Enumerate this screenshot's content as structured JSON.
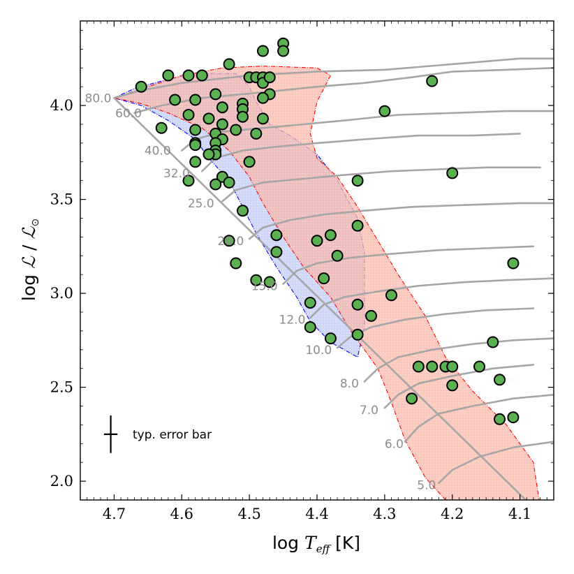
{
  "chart_data": {
    "type": "scatter",
    "title": "",
    "xlabel": "log T_eff [K]",
    "ylabel": "log ℒ / ℒ⊙",
    "xlim": [
      4.75,
      4.05
    ],
    "ylim": [
      1.9,
      4.45
    ],
    "x_ticks": [
      4.7,
      4.6,
      4.5,
      4.4,
      4.3,
      4.2,
      4.1
    ],
    "x_tick_labels": [
      "4.7",
      "4.6",
      "4.5",
      "4.4",
      "4.3",
      "4.2",
      "4.1"
    ],
    "y_ticks": [
      2.0,
      2.5,
      3.0,
      3.5,
      4.0
    ],
    "y_tick_labels": [
      "2.0",
      "2.5",
      "3.0",
      "3.5",
      "4.0"
    ],
    "zams": [
      [
        4.7,
        4.04
      ],
      [
        4.08,
        1.86
      ]
    ],
    "colors": {
      "star_fill": "#5bb151",
      "track": "#a6a6a6",
      "blue_region": "#b9c6f5",
      "blue_edge": "#0000ff",
      "red_region": "#f9b4a6",
      "red_edge": "#ff0000"
    },
    "mass_labels": [
      {
        "mass": "80.0",
        "x": 4.7,
        "y": 4.04
      },
      {
        "mass": "60.0",
        "x": 4.655,
        "y": 3.96
      },
      {
        "mass": "40.0",
        "x": 4.612,
        "y": 3.76
      },
      {
        "mass": "32.0",
        "x": 4.584,
        "y": 3.64
      },
      {
        "mass": "25.0",
        "x": 4.548,
        "y": 3.48
      },
      {
        "mass": "20.0",
        "x": 4.504,
        "y": 3.28
      },
      {
        "mass": "15.0",
        "x": 4.454,
        "y": 3.04
      },
      {
        "mass": "12.0",
        "x": 4.413,
        "y": 2.86
      },
      {
        "mass": "10.0",
        "x": 4.374,
        "y": 2.7
      },
      {
        "mass": "8.0",
        "x": 4.334,
        "y": 2.52
      },
      {
        "mass": "7.0",
        "x": 4.305,
        "y": 2.38
      },
      {
        "mass": "6.0",
        "x": 4.268,
        "y": 2.2
      },
      {
        "mass": "5.0",
        "x": 4.22,
        "y": 1.98
      }
    ],
    "tracks": [
      {
        "mass": "80.0",
        "points": [
          [
            4.7,
            4.04
          ],
          [
            4.66,
            4.08
          ],
          [
            4.6,
            4.12
          ],
          [
            4.5,
            4.16
          ],
          [
            4.4,
            4.18
          ],
          [
            4.3,
            4.19
          ],
          [
            4.2,
            4.22
          ],
          [
            4.1,
            4.25
          ],
          [
            4.05,
            4.25
          ]
        ]
      },
      {
        "mass": "60.0",
        "points": [
          [
            4.67,
            3.96
          ],
          [
            4.63,
            4.0
          ],
          [
            4.57,
            4.04
          ],
          [
            4.48,
            4.07
          ],
          [
            4.4,
            4.1
          ],
          [
            4.33,
            4.12
          ],
          [
            4.26,
            4.15
          ],
          [
            4.2,
            4.18
          ],
          [
            4.12,
            4.19
          ],
          [
            4.05,
            4.2
          ]
        ]
      },
      {
        "mass": "40.0",
        "points": [
          [
            4.6,
            3.76
          ],
          [
            4.58,
            3.82
          ],
          [
            4.54,
            3.86
          ],
          [
            4.48,
            3.88
          ],
          [
            4.42,
            3.9
          ],
          [
            4.36,
            3.92
          ],
          [
            4.28,
            3.95
          ],
          [
            4.2,
            3.96
          ],
          [
            4.12,
            3.97
          ],
          [
            4.05,
            3.97
          ]
        ]
      },
      {
        "mass": "32.0",
        "points": [
          [
            4.57,
            3.65
          ],
          [
            4.55,
            3.72
          ],
          [
            4.51,
            3.76
          ],
          [
            4.46,
            3.78
          ],
          [
            4.4,
            3.8
          ],
          [
            4.33,
            3.82
          ],
          [
            4.25,
            3.84
          ],
          [
            4.17,
            3.84
          ],
          [
            4.1,
            3.85
          ]
        ]
      },
      {
        "mass": "25.0",
        "points": [
          [
            4.54,
            3.49
          ],
          [
            4.52,
            3.55
          ],
          [
            4.48,
            3.59
          ],
          [
            4.42,
            3.61
          ],
          [
            4.36,
            3.63
          ],
          [
            4.29,
            3.65
          ],
          [
            4.22,
            3.66
          ],
          [
            4.15,
            3.67
          ],
          [
            4.07,
            3.67
          ]
        ]
      },
      {
        "mass": "20.0",
        "points": [
          [
            4.5,
            3.29
          ],
          [
            4.48,
            3.35
          ],
          [
            4.44,
            3.39
          ],
          [
            4.39,
            3.42
          ],
          [
            4.33,
            3.44
          ],
          [
            4.26,
            3.46
          ],
          [
            4.18,
            3.47
          ],
          [
            4.1,
            3.48
          ],
          [
            4.05,
            3.48
          ]
        ]
      },
      {
        "mass": "15.0",
        "points": [
          [
            4.45,
            3.05
          ],
          [
            4.43,
            3.12
          ],
          [
            4.4,
            3.16
          ],
          [
            4.35,
            3.19
          ],
          [
            4.29,
            3.21
          ],
          [
            4.22,
            3.23
          ],
          [
            4.15,
            3.24
          ],
          [
            4.08,
            3.25
          ]
        ]
      },
      {
        "mass": "12.0",
        "points": [
          [
            4.41,
            2.87
          ],
          [
            4.39,
            2.94
          ],
          [
            4.36,
            2.98
          ],
          [
            4.31,
            3.01
          ],
          [
            4.25,
            3.04
          ],
          [
            4.18,
            3.06
          ],
          [
            4.12,
            3.07
          ],
          [
            4.05,
            3.08
          ]
        ]
      },
      {
        "mass": "10.0",
        "points": [
          [
            4.37,
            2.71
          ],
          [
            4.35,
            2.77
          ],
          [
            4.32,
            2.82
          ],
          [
            4.27,
            2.86
          ],
          [
            4.21,
            2.89
          ],
          [
            4.15,
            2.91
          ],
          [
            4.08,
            2.92
          ]
        ]
      },
      {
        "mass": "8.0",
        "points": [
          [
            4.33,
            2.53
          ],
          [
            4.31,
            2.6
          ],
          [
            4.28,
            2.66
          ],
          [
            4.23,
            2.7
          ],
          [
            4.17,
            2.73
          ],
          [
            4.11,
            2.75
          ],
          [
            4.05,
            2.76
          ]
        ]
      },
      {
        "mass": "7.0",
        "points": [
          [
            4.3,
            2.39
          ],
          [
            4.28,
            2.46
          ],
          [
            4.25,
            2.52
          ],
          [
            4.2,
            2.56
          ],
          [
            4.14,
            2.6
          ],
          [
            4.08,
            2.62
          ]
        ]
      },
      {
        "mass": "6.0",
        "points": [
          [
            4.27,
            2.21
          ],
          [
            4.25,
            2.29
          ],
          [
            4.22,
            2.36
          ],
          [
            4.17,
            2.4
          ],
          [
            4.11,
            2.44
          ],
          [
            4.05,
            2.46
          ]
        ]
      },
      {
        "mass": "5.0",
        "points": [
          [
            4.22,
            1.99
          ],
          [
            4.2,
            2.06
          ],
          [
            4.16,
            2.13
          ],
          [
            4.11,
            2.18
          ],
          [
            4.05,
            2.21
          ]
        ]
      }
    ],
    "regions": [
      {
        "name": "blue",
        "fill": "#b9c6f5",
        "edge": "#0000ff",
        "points": [
          [
            4.7,
            4.04
          ],
          [
            4.67,
            4.09
          ],
          [
            4.62,
            4.14
          ],
          [
            4.58,
            4.17
          ],
          [
            4.52,
            4.17
          ],
          [
            4.5,
            4.1
          ],
          [
            4.49,
            4.02
          ],
          [
            4.47,
            3.9
          ],
          [
            4.44,
            3.84
          ],
          [
            4.4,
            3.74
          ],
          [
            4.37,
            3.6
          ],
          [
            4.34,
            3.4
          ],
          [
            4.33,
            3.22
          ],
          [
            4.33,
            3.0
          ],
          [
            4.33,
            2.82
          ],
          [
            4.34,
            2.66
          ],
          [
            4.38,
            2.74
          ],
          [
            4.41,
            2.85
          ],
          [
            4.43,
            2.98
          ],
          [
            4.46,
            3.14
          ],
          [
            4.49,
            3.32
          ],
          [
            4.51,
            3.46
          ],
          [
            4.53,
            3.6
          ],
          [
            4.56,
            3.72
          ],
          [
            4.58,
            3.82
          ],
          [
            4.62,
            3.92
          ],
          [
            4.66,
            4.0
          ]
        ]
      },
      {
        "name": "red",
        "fill": "#f9b4a6",
        "edge": "#ff0000",
        "points": [
          [
            4.7,
            4.04
          ],
          [
            4.65,
            4.1
          ],
          [
            4.6,
            4.16
          ],
          [
            4.54,
            4.2
          ],
          [
            4.48,
            4.21
          ],
          [
            4.4,
            4.2
          ],
          [
            4.38,
            4.16
          ],
          [
            4.4,
            4.02
          ],
          [
            4.41,
            3.85
          ],
          [
            4.4,
            3.72
          ],
          [
            4.37,
            3.62
          ],
          [
            4.34,
            3.46
          ],
          [
            4.31,
            3.28
          ],
          [
            4.28,
            3.1
          ],
          [
            4.24,
            2.88
          ],
          [
            4.21,
            2.66
          ],
          [
            4.17,
            2.48
          ],
          [
            4.12,
            2.3
          ],
          [
            4.08,
            2.1
          ],
          [
            4.07,
            1.86
          ],
          [
            4.2,
            1.86
          ],
          [
            4.24,
            2.02
          ],
          [
            4.27,
            2.22
          ],
          [
            4.29,
            2.42
          ],
          [
            4.31,
            2.6
          ],
          [
            4.35,
            2.8
          ],
          [
            4.38,
            2.98
          ],
          [
            4.42,
            3.14
          ],
          [
            4.45,
            3.3
          ],
          [
            4.48,
            3.48
          ],
          [
            4.5,
            3.62
          ],
          [
            4.53,
            3.76
          ],
          [
            4.57,
            3.88
          ],
          [
            4.62,
            3.96
          ],
          [
            4.66,
            4.01
          ]
        ]
      }
    ],
    "stars": [
      [
        4.66,
        4.1
      ],
      [
        4.62,
        4.16
      ],
      [
        4.59,
        4.16
      ],
      [
        4.57,
        4.16
      ],
      [
        4.53,
        4.22
      ],
      [
        4.5,
        4.15
      ],
      [
        4.49,
        4.15
      ],
      [
        4.48,
        4.15
      ],
      [
        4.48,
        4.12
      ],
      [
        4.47,
        4.15
      ],
      [
        4.48,
        4.29
      ],
      [
        4.45,
        4.33
      ],
      [
        4.45,
        4.29
      ],
      [
        4.47,
        4.06
      ],
      [
        4.48,
        4.04
      ],
      [
        4.55,
        4.06
      ],
      [
        4.58,
        4.03
      ],
      [
        4.61,
        4.03
      ],
      [
        4.59,
        3.95
      ],
      [
        4.56,
        3.93
      ],
      [
        4.54,
        3.99
      ],
      [
        4.51,
        4.01
      ],
      [
        4.51,
        3.98
      ],
      [
        4.51,
        3.94
      ],
      [
        4.48,
        3.93
      ],
      [
        4.54,
        3.9
      ],
      [
        4.52,
        3.87
      ],
      [
        4.58,
        3.87
      ],
      [
        4.55,
        3.85
      ],
      [
        4.63,
        3.88
      ],
      [
        4.49,
        3.85
      ],
      [
        4.54,
        3.82
      ],
      [
        4.55,
        3.8
      ],
      [
        4.58,
        3.8
      ],
      [
        4.58,
        3.79
      ],
      [
        4.55,
        3.76
      ],
      [
        4.55,
        3.74
      ],
      [
        4.56,
        3.74
      ],
      [
        4.58,
        3.7
      ],
      [
        4.5,
        3.7
      ],
      [
        4.54,
        3.62
      ],
      [
        4.53,
        3.59
      ],
      [
        4.55,
        3.58
      ],
      [
        4.59,
        3.6
      ],
      [
        4.51,
        3.44
      ],
      [
        4.46,
        3.31
      ],
      [
        4.4,
        3.28
      ],
      [
        4.38,
        3.31
      ],
      [
        4.46,
        3.22
      ],
      [
        4.37,
        3.2
      ],
      [
        4.34,
        3.36
      ],
      [
        4.53,
        3.28
      ],
      [
        4.52,
        3.16
      ],
      [
        4.39,
        3.08
      ],
      [
        4.49,
        3.07
      ],
      [
        4.47,
        3.06
      ],
      [
        4.41,
        2.95
      ],
      [
        4.34,
        2.94
      ],
      [
        4.29,
        2.99
      ],
      [
        4.32,
        2.88
      ],
      [
        4.41,
        2.82
      ],
      [
        4.38,
        2.76
      ],
      [
        4.34,
        2.78
      ],
      [
        4.34,
        3.6
      ],
      [
        4.3,
        3.97
      ],
      [
        4.23,
        4.13
      ],
      [
        4.2,
        3.64
      ],
      [
        4.11,
        3.16
      ],
      [
        4.25,
        2.61
      ],
      [
        4.23,
        2.61
      ],
      [
        4.21,
        2.61
      ],
      [
        4.2,
        2.61
      ],
      [
        4.16,
        2.61
      ],
      [
        4.14,
        2.74
      ],
      [
        4.13,
        2.54
      ],
      [
        4.13,
        2.33
      ],
      [
        4.11,
        2.34
      ],
      [
        4.2,
        2.51
      ],
      [
        4.26,
        2.44
      ]
    ],
    "legend": {
      "label": "typ. error bar",
      "placement": "lower-left",
      "x_err": 0.01,
      "y_err": 0.1
    }
  }
}
